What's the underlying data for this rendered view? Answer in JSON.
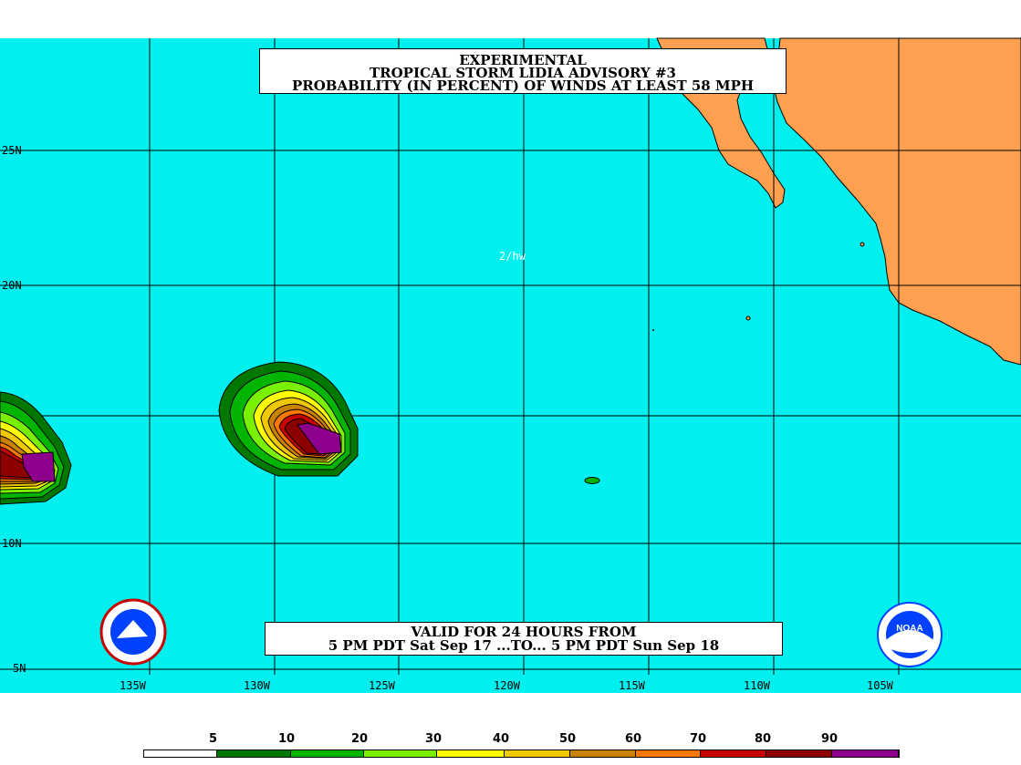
{
  "title": {
    "line1": "EXPERIMENTAL",
    "line2": "TROPICAL STORM LIDIA ADVISORY #3",
    "line3": "PROBABILITY (IN PERCENT) OF WINDS AT LEAST 58 MPH"
  },
  "valid": {
    "line1": "VALID FOR 24 HOURS FROM",
    "line2": "5 PM PDT Sat Sep 17 ...TO... 5 PM PDT Sun Sep 18"
  },
  "code_label": "2/hw",
  "lat_labels": [
    "25N",
    "20N",
    "10N",
    "5N"
  ],
  "lon_labels": [
    "135W",
    "130W",
    "125W",
    "120W",
    "115W",
    "110W",
    "105W"
  ],
  "legend": {
    "ticks": [
      "5",
      "10",
      "20",
      "30",
      "40",
      "50",
      "60",
      "70",
      "80",
      "90"
    ],
    "colors": [
      "#ffffff",
      "#007800",
      "#00b400",
      "#78f000",
      "#ffff00",
      "#f0c800",
      "#c88200",
      "#ff7800",
      "#c80000",
      "#8c0000",
      "#8c008c"
    ]
  },
  "colors": {
    "ocean": "#00f0f0",
    "land": "#ffa050"
  }
}
